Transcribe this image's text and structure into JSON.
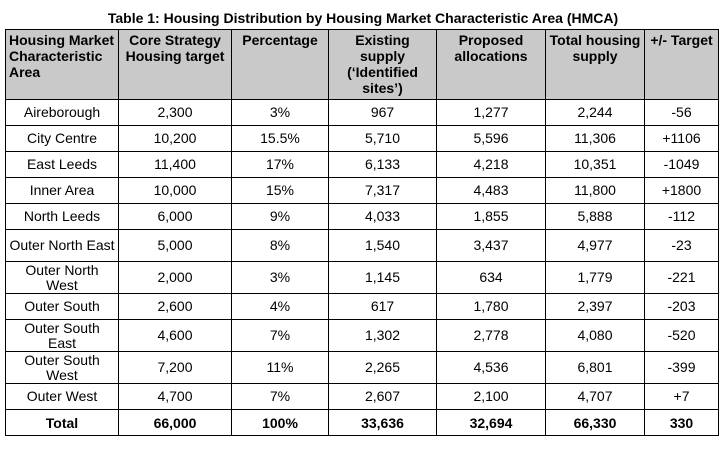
{
  "caption": "Table 1: Housing Distribution by Housing Market Characteristic Area (HMCA)",
  "columns": [
    "Housing Market Characteristic Area",
    "Core Strategy Housing target",
    "Percentage",
    "Existing supply (‘Identified sites’)",
    "Proposed allocations",
    "Total housing supply",
    "+/- Target"
  ],
  "rows": [
    [
      "Aireborough",
      "2,300",
      "3%",
      "967",
      "1,277",
      "2,244",
      "-56"
    ],
    [
      "City Centre",
      "10,200",
      "15.5%",
      "5,710",
      "5,596",
      "11,306",
      "+1106"
    ],
    [
      "East Leeds",
      "11,400",
      "17%",
      "6,133",
      "4,218",
      "10,351",
      "-1049"
    ],
    [
      "Inner Area",
      "10,000",
      "15%",
      "7,317",
      "4,483",
      "11,800",
      "+1800"
    ],
    [
      "North Leeds",
      "6,000",
      "9%",
      "4,033",
      "1,855",
      "5,888",
      "-112"
    ],
    [
      "Outer North East",
      "5,000",
      "8%",
      "1,540",
      "3,437",
      "4,977",
      "-23"
    ],
    [
      "Outer North West",
      "2,000",
      "3%",
      "1,145",
      "634",
      "1,779",
      "-221"
    ],
    [
      "Outer South",
      "2,600",
      "4%",
      "617",
      "1,780",
      "2,397",
      "-203"
    ],
    [
      "Outer South East",
      "4,600",
      "7%",
      "1,302",
      "2,778",
      "4,080",
      "-520"
    ],
    [
      "Outer South West",
      "7,200",
      "11%",
      "2,265",
      "4,536",
      "6,801",
      "-399"
    ],
    [
      "Outer West",
      "4,700",
      "7%",
      "2,607",
      "2,100",
      "4,707",
      "+7"
    ]
  ],
  "total": [
    "Total",
    "66,000",
    "100%",
    "33,636",
    "32,694",
    "66,330",
    "330"
  ]
}
